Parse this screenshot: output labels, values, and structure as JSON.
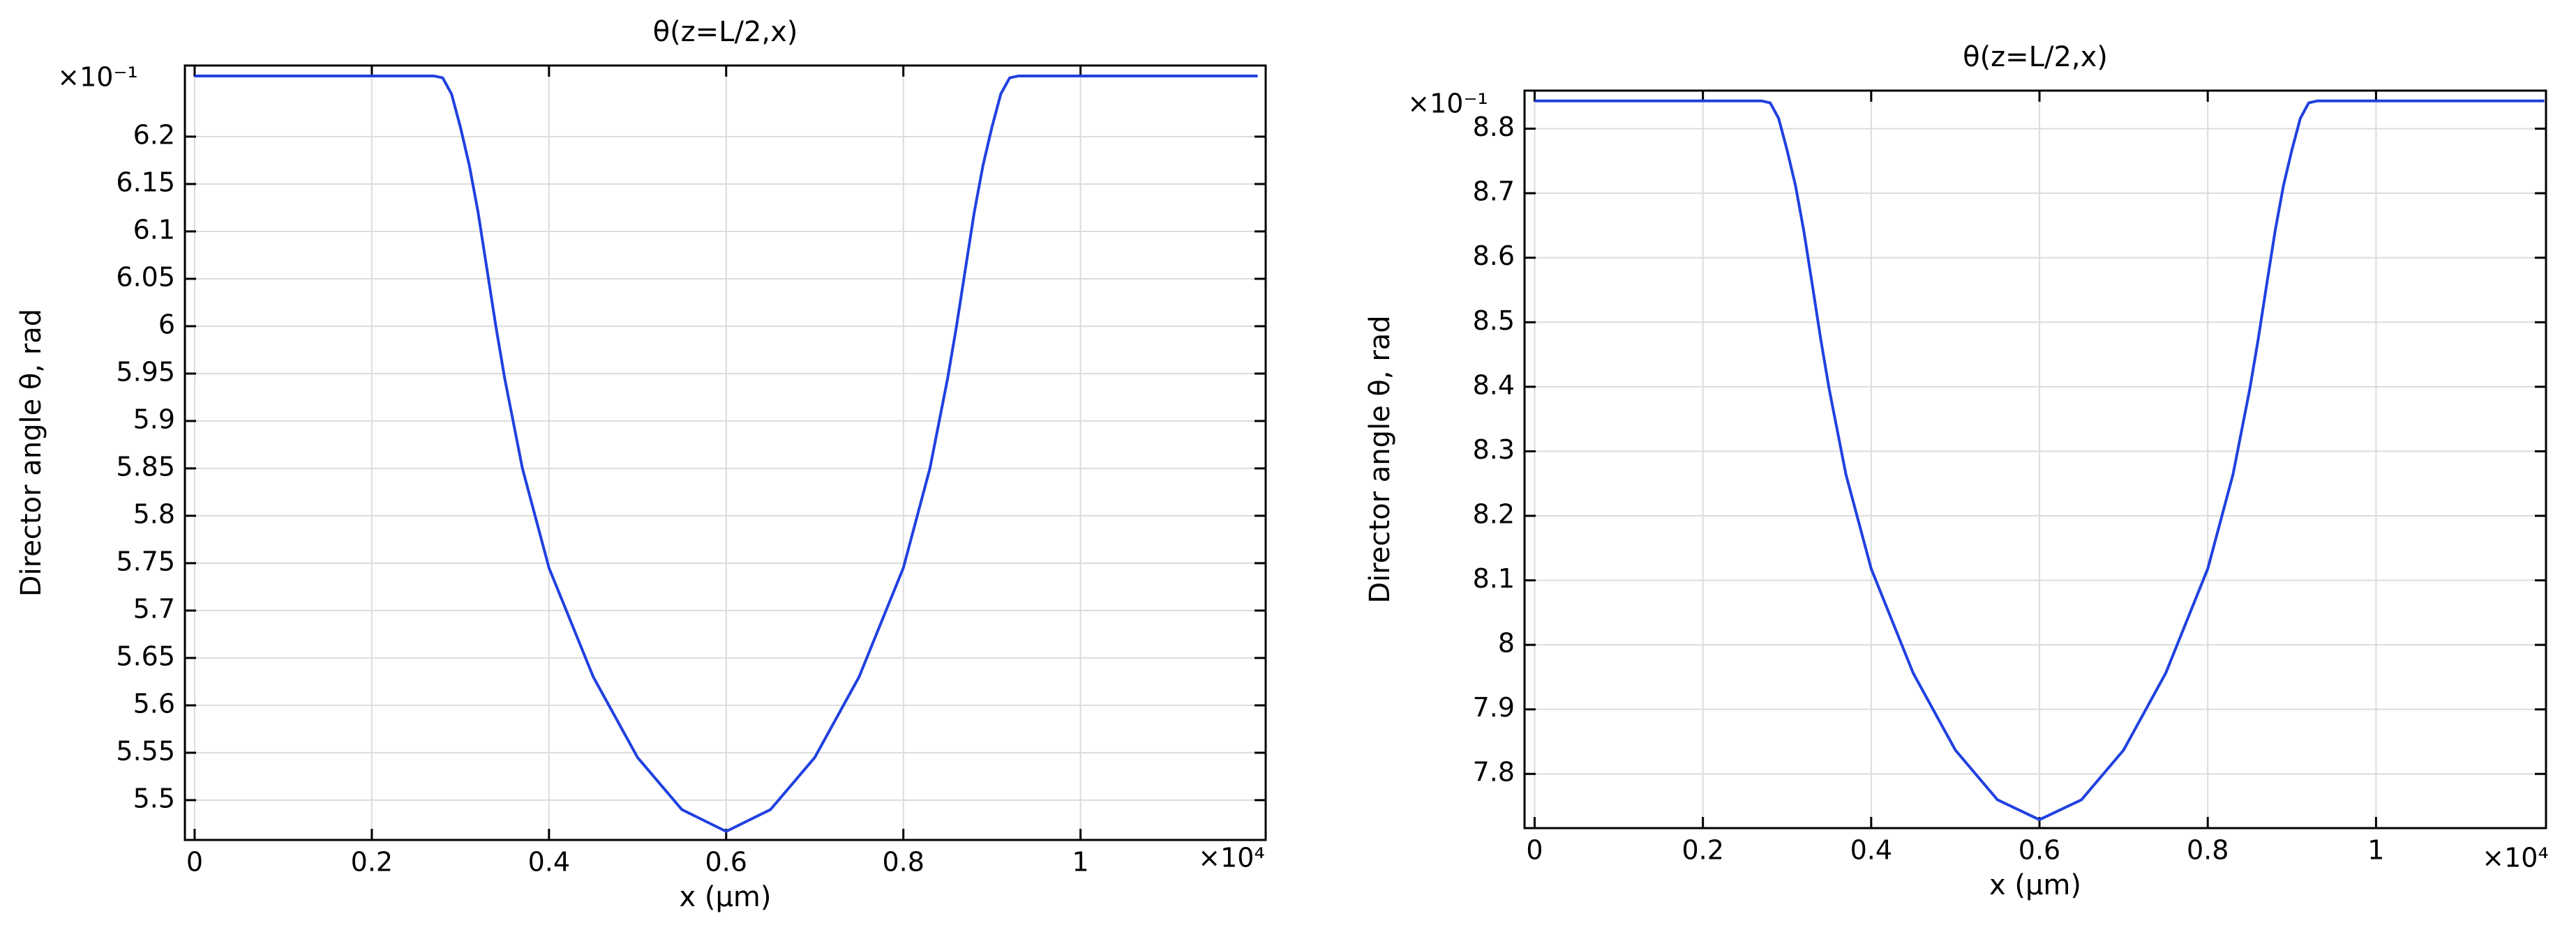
{
  "chart_data": [
    {
      "type": "line",
      "title": "θ(z=L/2,x)",
      "x_label": "x (µm)",
      "y_label": "Director angle θ, rad",
      "x_multiplier": "×10⁴",
      "y_multiplier": "×10⁻¹",
      "x": [
        0,
        0.1,
        0.2,
        0.27,
        0.28,
        0.29,
        0.3,
        0.31,
        0.32,
        0.33,
        0.34,
        0.35,
        0.37,
        0.4,
        0.45,
        0.5,
        0.55,
        0.6,
        0.65,
        0.7,
        0.75,
        0.8,
        0.83,
        0.85,
        0.86,
        0.87,
        0.88,
        0.89,
        0.9,
        0.91,
        0.92,
        0.93,
        1.0,
        1.1,
        1.2
      ],
      "values": [
        6.264,
        6.264,
        6.264,
        6.264,
        6.262,
        6.245,
        6.21,
        6.17,
        6.12,
        6.06,
        6.0,
        5.945,
        5.85,
        5.745,
        5.63,
        5.545,
        5.49,
        5.467,
        5.49,
        5.545,
        5.63,
        5.745,
        5.85,
        5.945,
        6.0,
        6.06,
        6.12,
        6.17,
        6.21,
        6.245,
        6.262,
        6.264,
        6.264,
        6.264,
        6.264
      ],
      "color": "#2041e0",
      "xlim": [
        -0.011,
        1.209
      ],
      "ylim": [
        5.458,
        6.275
      ],
      "xticks": [
        0,
        0.2,
        0.4,
        0.6,
        0.8,
        1
      ],
      "yticks": [
        5.5,
        5.55,
        5.6,
        5.65,
        5.7,
        5.75,
        5.8,
        5.85,
        5.9,
        5.95,
        6,
        6.05,
        6.1,
        6.15,
        6.2
      ],
      "grid": true
    },
    {
      "type": "line",
      "title": "θ(z=L/2,x)",
      "x_label": "x (µm)",
      "y_label": "Director angle θ, rad",
      "x_multiplier": "×10⁴",
      "y_multiplier": "×10⁻¹",
      "x": [
        0,
        0.1,
        0.2,
        0.27,
        0.28,
        0.29,
        0.3,
        0.31,
        0.32,
        0.33,
        0.34,
        0.35,
        0.37,
        0.4,
        0.45,
        0.5,
        0.55,
        0.6,
        0.65,
        0.7,
        0.75,
        0.8,
        0.83,
        0.85,
        0.86,
        0.87,
        0.88,
        0.89,
        0.9,
        0.91,
        0.92,
        0.93,
        1.0,
        1.1,
        1.2
      ],
      "values": [
        8.843,
        8.843,
        8.843,
        8.843,
        8.84,
        8.816,
        8.767,
        8.712,
        8.641,
        8.558,
        8.474,
        8.397,
        8.264,
        8.118,
        7.956,
        7.837,
        7.76,
        7.729,
        7.76,
        7.837,
        7.956,
        8.118,
        8.264,
        8.397,
        8.474,
        8.558,
        8.641,
        8.712,
        8.767,
        8.816,
        8.84,
        8.843,
        8.843,
        8.843,
        8.843
      ],
      "color": "#2041e0",
      "xlim": [
        -0.012,
        1.202
      ],
      "ylim": [
        7.716,
        8.859
      ],
      "xticks": [
        0,
        0.2,
        0.4,
        0.6,
        0.8,
        1
      ],
      "yticks": [
        7.8,
        7.9,
        8,
        8.1,
        8.2,
        8.3,
        8.4,
        8.5,
        8.6,
        8.7,
        8.8
      ],
      "grid": true
    }
  ]
}
